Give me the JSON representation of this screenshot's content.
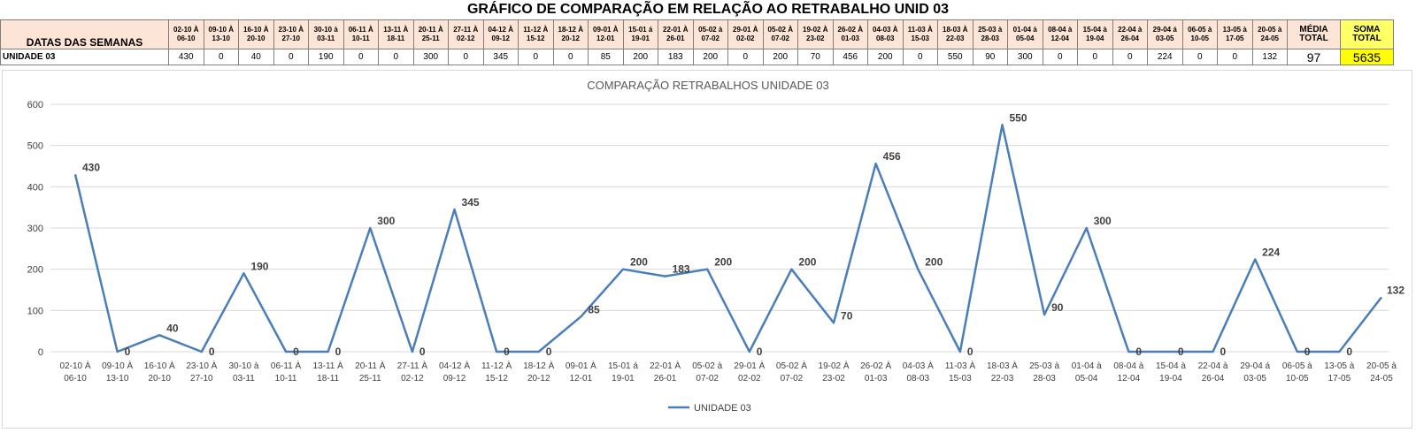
{
  "sheet": {
    "title": "GRÁFICO DE COMPARAÇÃO EM RELAÇÃO AO RETRABALHO UNID 03",
    "header_label": "DATAS DAS SEMANAS",
    "row_label": "UNIDADE 03",
    "weeks": [
      [
        "02-10 À",
        "06-10"
      ],
      [
        "09-10 À",
        "13-10"
      ],
      [
        "16-10 À",
        "20-10"
      ],
      [
        "23-10 À",
        "27-10"
      ],
      [
        "30-10 à",
        "03-11"
      ],
      [
        "06-11 À",
        "10-11"
      ],
      [
        "13-11 À",
        "18-11"
      ],
      [
        "20-11 À",
        "25-11"
      ],
      [
        "27-11 À",
        "02-12"
      ],
      [
        "04-12 À",
        "09-12"
      ],
      [
        "11-12 À",
        "15-12"
      ],
      [
        "18-12 À",
        "20-12"
      ],
      [
        "09-01 À",
        "12-01"
      ],
      [
        "15-01 á",
        "19-01"
      ],
      [
        "22-01 À",
        "26-01"
      ],
      [
        "05-02 à",
        "07-02"
      ],
      [
        "29-01 À",
        "02-02"
      ],
      [
        "05-02 À",
        "07-02"
      ],
      [
        "19-02 À",
        "23-02"
      ],
      [
        "26-02 À",
        "01-03"
      ],
      [
        "04-03 À",
        "08-03"
      ],
      [
        "11-03 À",
        "15-03"
      ],
      [
        "18-03 À",
        "22-03"
      ],
      [
        "25-03 à",
        "28-03"
      ],
      [
        "01-04 à",
        "05-04"
      ],
      [
        "08-04 à",
        "12-04"
      ],
      [
        "15-04 à",
        "19-04"
      ],
      [
        "22-04 à",
        "26-04"
      ],
      [
        "29-04 á",
        "03-05"
      ],
      [
        "06-05 à",
        "10-05"
      ],
      [
        "13-05 à",
        "17-05"
      ],
      [
        "20-05 à",
        "24-05"
      ]
    ],
    "mean_header": [
      "MÉDIA",
      "TOTAL"
    ],
    "sum_header": [
      "SOMA",
      "TOTAL"
    ],
    "mean_value": "97",
    "sum_value": "5635",
    "sum_color": "#ffff00",
    "header_color": "#fce4d6"
  },
  "chart_data": {
    "type": "line",
    "title": "COMPARAÇÃO RETRABALHOS UNIDADE 03",
    "xlabel": "",
    "ylabel": "",
    "ylim": [
      0,
      600
    ],
    "yticks": [
      0,
      100,
      200,
      300,
      400,
      500,
      600
    ],
    "grid": true,
    "legend_position": "bottom",
    "categories": [
      "02-10 À\n06-10",
      "09-10 À\n13-10",
      "16-10 À\n20-10",
      "23-10 À\n27-10",
      "30-10 à\n03-11",
      "06-11 À\n10-11",
      "13-11 À\n18-11",
      "20-11 À\n25-11",
      "27-11 À\n02-12",
      "04-12 À\n09-12",
      "11-12 À\n15-12",
      "18-12 À\n20-12",
      "09-01 À\n12-01",
      "15-01 á\n19-01",
      "22-01 À\n26-01",
      "05-02 à\n07-02",
      "29-01 À\n02-02",
      "05-02 À\n07-02",
      "19-02 À\n23-02",
      "26-02 À\n01-03",
      "04-03 À\n08-03",
      "11-03 À\n15-03",
      "18-03 À\n22-03",
      "25-03 à\n28-03",
      "01-04 à\n05-04",
      "08-04 à\n12-04",
      "15-04 à\n19-04",
      "22-04 à\n26-04",
      "29-04 á\n03-05",
      "06-05 à\n10-05",
      "13-05 à\n17-05",
      "20-05 à\n24-05"
    ],
    "series": [
      {
        "name": "UNIDADE 03",
        "color": "#4a7ebb",
        "values": [
          430,
          0,
          40,
          0,
          190,
          0,
          0,
          300,
          0,
          345,
          0,
          0,
          85,
          200,
          183,
          200,
          0,
          200,
          70,
          456,
          200,
          0,
          550,
          90,
          300,
          0,
          0,
          0,
          224,
          0,
          0,
          132
        ]
      }
    ]
  }
}
